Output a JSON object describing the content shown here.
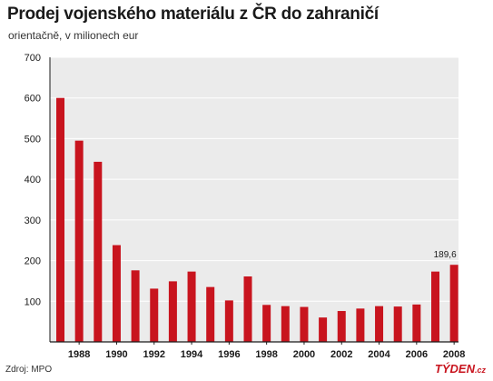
{
  "title": "Prodej vojenského materiálu z ČR do zahraničí",
  "subtitle": "orientačně, v milionech eur",
  "source": "Zdroj: MPO",
  "brand": {
    "main": "TÝDEN",
    "tld": ".cz"
  },
  "colors": {
    "bar": "#c8141e",
    "plot_background": "#ebebeb",
    "grid": "#ffffff",
    "axis": "#1a1a1a",
    "brand": "#c8141e"
  },
  "chart_data": {
    "type": "bar",
    "title": "Prodej vojenského materiálu z ČR do zahraničí",
    "subtitle": "orientačně, v milionech eur",
    "xlabel": "",
    "ylabel": "",
    "ylim": [
      0,
      700
    ],
    "yticks": [
      100,
      200,
      300,
      400,
      500,
      600,
      700
    ],
    "grid": true,
    "categories": [
      "1987",
      "1988",
      "1989",
      "1990",
      "1991",
      "1992",
      "1993",
      "1994",
      "1995",
      "1996",
      "1997",
      "1998",
      "1999",
      "2000",
      "2001",
      "2002",
      "2003",
      "2004",
      "2005",
      "2006",
      "2007",
      "2008"
    ],
    "xtick_labels": [
      "1988",
      "1990",
      "1992",
      "1994",
      "1996",
      "1998",
      "2000",
      "2002",
      "2004",
      "2006",
      "2008"
    ],
    "values": [
      600,
      495,
      443,
      238,
      176,
      131,
      149,
      173,
      135,
      102,
      161,
      91,
      88,
      86,
      60,
      76,
      82,
      88,
      87,
      92,
      173,
      189.6
    ],
    "annotations": [
      {
        "category": "2008",
        "text": "189,6"
      }
    ]
  }
}
